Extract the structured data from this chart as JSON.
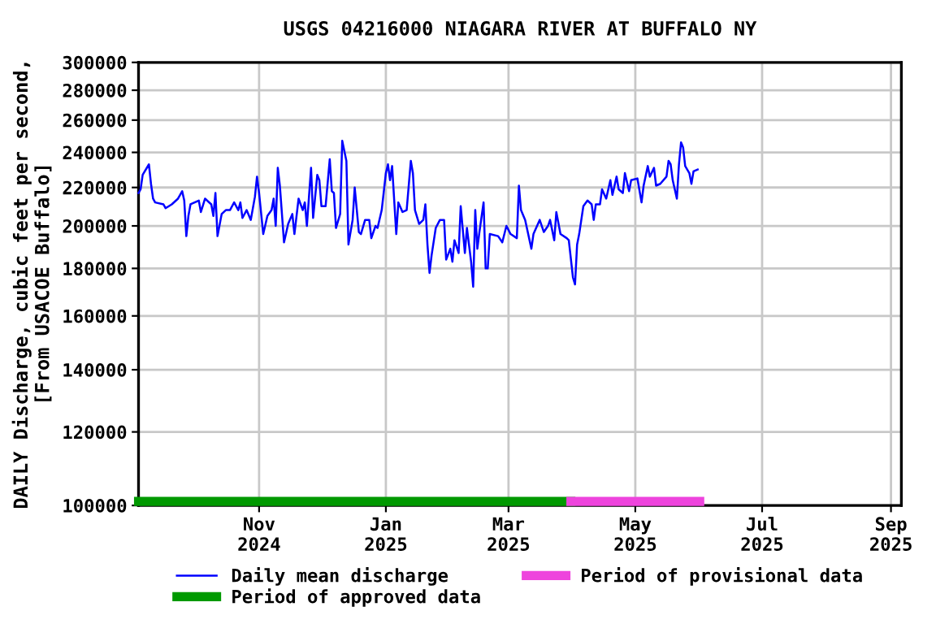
{
  "chart_data": {
    "type": "line",
    "title": "USGS 04216000 NIAGARA RIVER AT BUFFALO NY",
    "ylabel": "DAILY Discharge, cubic feet per second,\n[From USACOE Buffalo]",
    "log": "y",
    "ylim": [
      100000,
      300000
    ],
    "yticks": [
      100000,
      120000,
      140000,
      160000,
      180000,
      200000,
      220000,
      240000,
      260000,
      280000,
      300000
    ],
    "xlim": [
      "2024-09-04",
      "2025-09-06"
    ],
    "xticks": [
      {
        "value": "2024-11-01",
        "label": "Nov\n2024"
      },
      {
        "value": "2025-01-01",
        "label": "Jan\n2025"
      },
      {
        "value": "2025-03-01",
        "label": "Mar\n2025"
      },
      {
        "value": "2025-05-01",
        "label": "May\n2025"
      },
      {
        "value": "2025-07-01",
        "label": "Jul\n2025"
      },
      {
        "value": "2025-09-01",
        "label": "Sep\n2025"
      }
    ],
    "grid": true,
    "legend": "bottom",
    "line_style": "solid",
    "series": [
      {
        "name": "Daily mean discharge",
        "color": "#0000ff",
        "x": [
          "2024-09-04",
          "2024-09-05",
          "2024-09-06",
          "2024-09-09",
          "2024-09-10",
          "2024-09-11",
          "2024-09-12",
          "2024-09-16",
          "2024-09-17",
          "2024-09-20",
          "2024-09-23",
          "2024-09-25",
          "2024-09-26",
          "2024-09-27",
          "2024-09-28",
          "2024-09-29",
          "2024-10-01",
          "2024-10-03",
          "2024-10-04",
          "2024-10-06",
          "2024-10-09",
          "2024-10-10",
          "2024-10-11",
          "2024-10-12",
          "2024-10-14",
          "2024-10-16",
          "2024-10-18",
          "2024-10-20",
          "2024-10-22",
          "2024-10-23",
          "2024-10-24",
          "2024-10-26",
          "2024-10-28",
          "2024-10-30",
          "2024-10-31",
          "2024-11-01",
          "2024-11-03",
          "2024-11-05",
          "2024-11-07",
          "2024-11-08",
          "2024-11-09",
          "2024-11-10",
          "2024-11-11",
          "2024-11-13",
          "2024-11-15",
          "2024-11-17",
          "2024-11-18",
          "2024-11-20",
          "2024-11-22",
          "2024-11-23",
          "2024-11-24",
          "2024-11-26",
          "2024-11-27",
          "2024-11-29",
          "2024-11-30",
          "2024-12-01",
          "2024-12-03",
          "2024-12-05",
          "2024-12-06",
          "2024-12-07",
          "2024-12-08",
          "2024-12-10",
          "2024-12-11",
          "2024-12-13",
          "2024-12-14",
          "2024-12-16",
          "2024-12-17",
          "2024-12-19",
          "2024-12-20",
          "2024-12-22",
          "2024-12-24",
          "2024-12-25",
          "2024-12-27",
          "2024-12-28",
          "2024-12-30",
          "2025-01-01",
          "2025-01-02",
          "2025-01-03",
          "2025-01-04",
          "2025-01-06",
          "2025-01-07",
          "2025-01-09",
          "2025-01-11",
          "2025-01-13",
          "2025-01-14",
          "2025-01-15",
          "2025-01-17",
          "2025-01-19",
          "2025-01-20",
          "2025-01-21",
          "2025-01-22",
          "2025-01-23",
          "2025-01-25",
          "2025-01-27",
          "2025-01-28",
          "2025-01-29",
          "2025-01-30",
          "2025-02-01",
          "2025-02-02",
          "2025-02-03",
          "2025-02-05",
          "2025-02-06",
          "2025-02-08",
          "2025-02-09",
          "2025-02-11",
          "2025-02-12",
          "2025-02-13",
          "2025-02-14",
          "2025-02-15",
          "2025-02-17",
          "2025-02-18",
          "2025-02-19",
          "2025-02-20",
          "2025-02-24",
          "2025-02-26",
          "2025-02-28",
          "2025-03-02",
          "2025-03-05",
          "2025-03-06",
          "2025-03-07",
          "2025-03-09",
          "2025-03-12",
          "2025-03-13",
          "2025-03-16",
          "2025-03-18",
          "2025-03-20",
          "2025-03-21",
          "2025-03-23",
          "2025-03-24",
          "2025-03-26",
          "2025-03-29",
          "2025-03-30",
          "2025-04-01",
          "2025-04-02",
          "2025-04-03",
          "2025-04-04",
          "2025-04-06",
          "2025-04-08",
          "2025-04-10",
          "2025-04-11",
          "2025-04-12",
          "2025-04-14",
          "2025-04-15",
          "2025-04-17",
          "2025-04-19",
          "2025-04-20",
          "2025-04-22",
          "2025-04-23",
          "2025-04-25",
          "2025-04-26",
          "2025-04-28",
          "2025-04-29",
          "2025-05-02",
          "2025-05-04",
          "2025-05-05",
          "2025-05-07",
          "2025-05-08",
          "2025-05-10",
          "2025-05-11",
          "2025-05-13",
          "2025-05-16",
          "2025-05-17",
          "2025-05-18",
          "2025-05-19",
          "2025-05-21",
          "2025-05-22",
          "2025-05-23",
          "2025-05-24",
          "2025-05-25",
          "2025-05-27",
          "2025-05-28",
          "2025-05-29",
          "2025-05-31"
        ],
        "values": [
          217000,
          219000,
          227000,
          233000,
          222000,
          214000,
          212000,
          211000,
          209000,
          211000,
          214000,
          218000,
          213000,
          195000,
          205000,
          211000,
          212000,
          213000,
          207000,
          214000,
          211000,
          205000,
          217000,
          195000,
          206000,
          208000,
          208000,
          212000,
          208000,
          212000,
          204000,
          208000,
          203000,
          215000,
          226000,
          217000,
          196000,
          205000,
          208000,
          214000,
          200000,
          231000,
          221000,
          192000,
          201000,
          206000,
          196000,
          214000,
          208000,
          212000,
          200000,
          231000,
          204000,
          227000,
          224000,
          210000,
          210000,
          236000,
          218000,
          217000,
          199000,
          206000,
          247000,
          235000,
          191000,
          203000,
          220000,
          197000,
          196000,
          203000,
          203000,
          194000,
          200000,
          199000,
          208000,
          228000,
          233000,
          224000,
          232000,
          196000,
          212000,
          207000,
          208000,
          235000,
          228000,
          208000,
          201000,
          203000,
          211000,
          191000,
          178000,
          186000,
          199000,
          203000,
          203000,
          203000,
          184000,
          189000,
          183000,
          193000,
          187000,
          210000,
          187000,
          199000,
          183000,
          172000,
          208000,
          189000,
          197000,
          212000,
          180000,
          180000,
          196000,
          195000,
          192000,
          200000,
          196000,
          194000,
          221000,
          208000,
          203000,
          189000,
          196000,
          203000,
          197000,
          200000,
          203000,
          193000,
          207000,
          196000,
          194000,
          193000,
          176000,
          173000,
          191000,
          196000,
          210000,
          213000,
          211000,
          203000,
          211000,
          211000,
          219000,
          214000,
          224000,
          216000,
          226000,
          219000,
          217000,
          228000,
          218000,
          224000,
          225000,
          212000,
          221000,
          232000,
          226000,
          231000,
          221000,
          222000,
          226000,
          235000,
          233000,
          224000,
          214000,
          233000,
          246000,
          243000,
          232000,
          228000,
          222000,
          229000,
          230000
        ]
      },
      {
        "name": "Period of approved data",
        "color": "#009900",
        "x": [
          "2024-09-04",
          "2025-03-31"
        ],
        "values": [
          101000,
          101000
        ]
      },
      {
        "name": "Period of provisional data",
        "color": "#ee44dd",
        "x": [
          "2025-03-31",
          "2025-06-01"
        ],
        "values": [
          101000,
          101000
        ]
      }
    ]
  }
}
